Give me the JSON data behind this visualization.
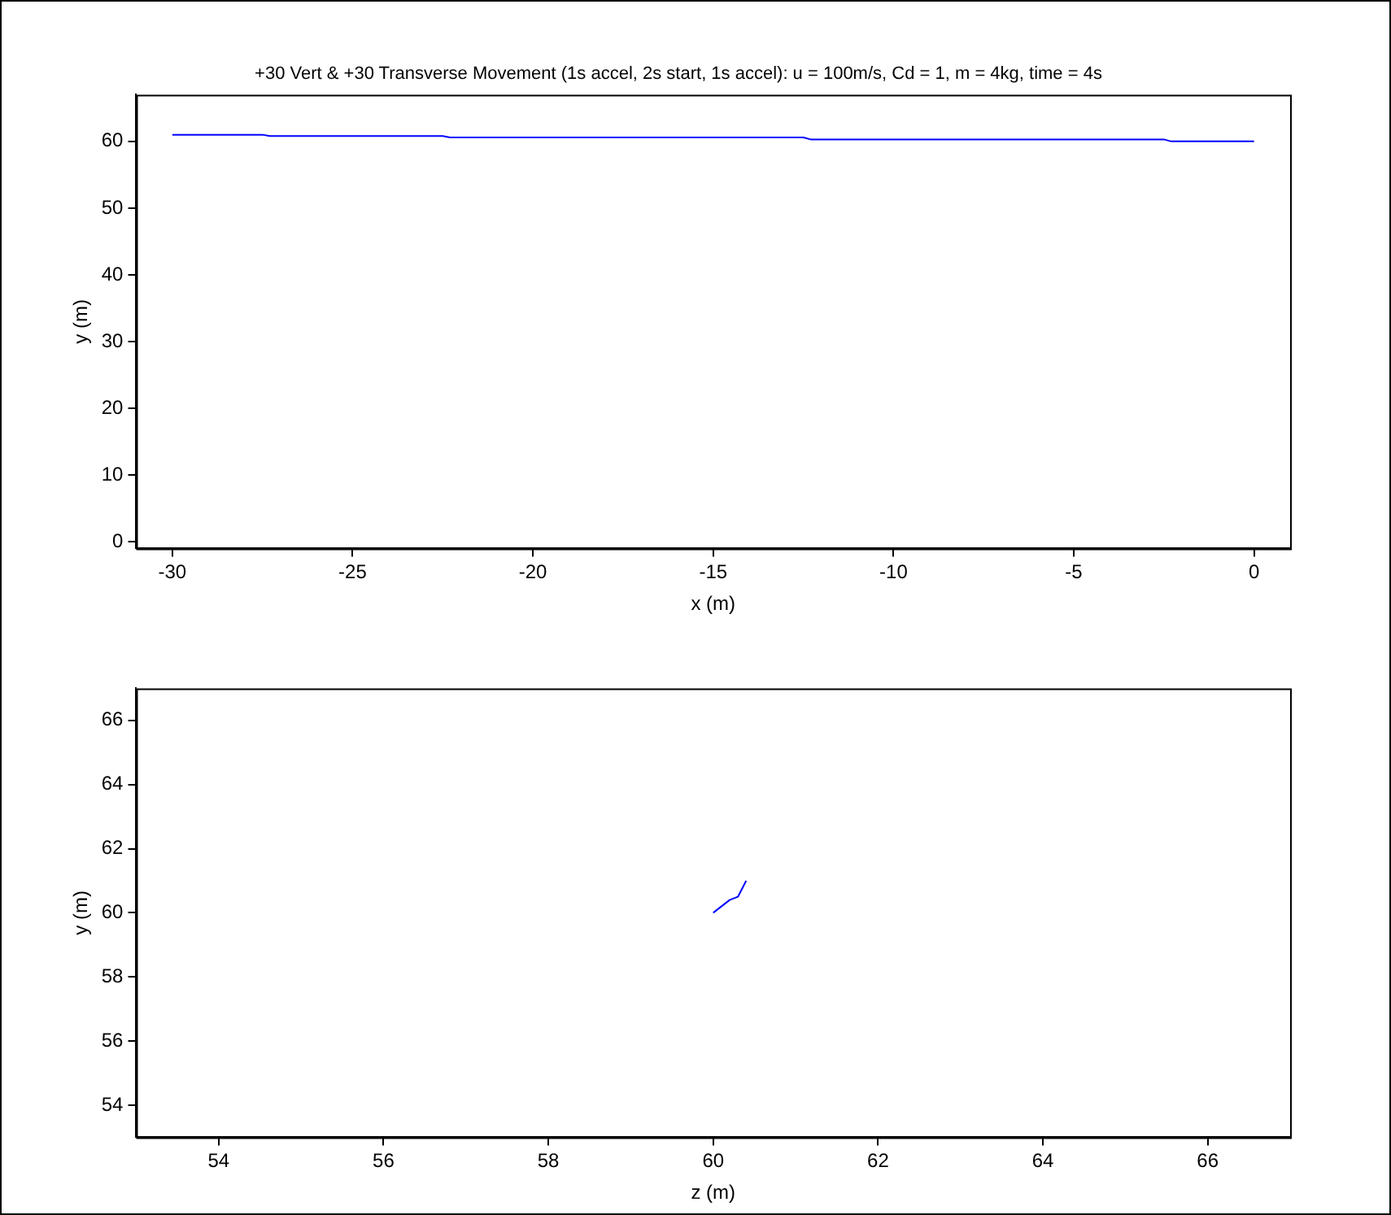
{
  "chart_data": [
    {
      "type": "line",
      "title": "+30 Vert & +30 Transverse Movement (1s accel, 2s start, 1s accel): u = 100m/s, Cd = 1, m = 4kg, time = 4s",
      "xlabel": "x (m)",
      "ylabel": "y (m)",
      "x": [
        -30,
        -27.5,
        -27.3,
        -22.5,
        -22.3,
        -12.5,
        -12.3,
        -2.5,
        -2.3,
        0
      ],
      "values": [
        61,
        61,
        60.8,
        60.8,
        60.6,
        60.6,
        60.3,
        60.3,
        60,
        60
      ],
      "color": "#0000ff",
      "xlim": [
        -31,
        1
      ],
      "ylim": [
        -1,
        67
      ],
      "xticks": [
        -30,
        -25,
        -20,
        -15,
        -10,
        -5,
        0
      ],
      "yticks": [
        0,
        10,
        20,
        30,
        40,
        50,
        60
      ]
    },
    {
      "type": "line",
      "xlabel": "z (m)",
      "ylabel": "y (m)",
      "x": [
        60,
        60.2,
        60.3,
        60.4
      ],
      "values": [
        60,
        60.4,
        60.5,
        61
      ],
      "color": "#0000ff",
      "xlim": [
        53,
        67
      ],
      "ylim": [
        53,
        67
      ],
      "xticks": [
        54,
        56,
        58,
        60,
        62,
        64,
        66
      ],
      "yticks": [
        54,
        56,
        58,
        60,
        62,
        64,
        66
      ]
    }
  ]
}
